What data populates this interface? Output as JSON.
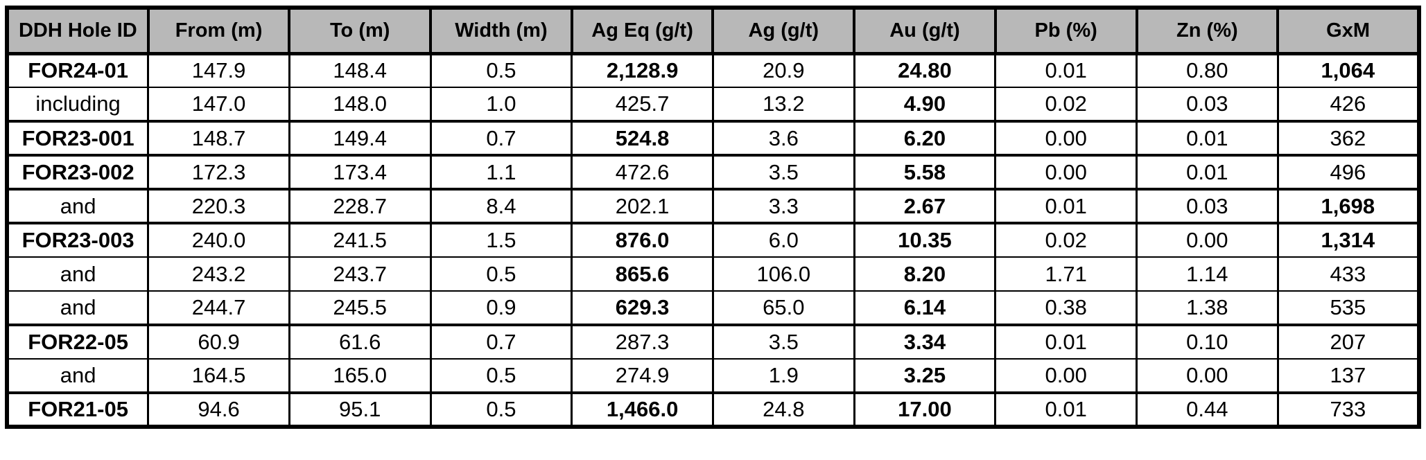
{
  "chart_data": {
    "type": "table",
    "columns": [
      "DDH Hole ID",
      "From (m)",
      "To (m)",
      "Width (m)",
      "Ag Eq (g/t)",
      "Ag (g/t)",
      "Au (g/t)",
      "Pb (%)",
      "Zn (%)",
      "GxM"
    ],
    "rows": [
      {
        "cells": [
          "FOR24-01",
          "147.9",
          "148.4",
          "0.5",
          "2,128.9",
          "20.9",
          "24.80",
          "0.01",
          "0.80",
          "1,064"
        ],
        "bold_cols": [
          0,
          4,
          6,
          9
        ],
        "thick_top": false
      },
      {
        "cells": [
          "including",
          "147.0",
          "148.0",
          "1.0",
          "425.7",
          "13.2",
          "4.90",
          "0.02",
          "0.03",
          "426"
        ],
        "bold_cols": [
          6
        ],
        "thick_top": false
      },
      {
        "cells": [
          "FOR23-001",
          "148.7",
          "149.4",
          "0.7",
          "524.8",
          "3.6",
          "6.20",
          "0.00",
          "0.01",
          "362"
        ],
        "bold_cols": [
          0,
          4,
          6
        ],
        "thick_top": true
      },
      {
        "cells": [
          "FOR23-002",
          "172.3",
          "173.4",
          "1.1",
          "472.6",
          "3.5",
          "5.58",
          "0.00",
          "0.01",
          "496"
        ],
        "bold_cols": [
          0,
          6
        ],
        "thick_top": true
      },
      {
        "cells": [
          "and",
          "220.3",
          "228.7",
          "8.4",
          "202.1",
          "3.3",
          "2.67",
          "0.01",
          "0.03",
          "1,698"
        ],
        "bold_cols": [
          6,
          9
        ],
        "thick_top": true
      },
      {
        "cells": [
          "FOR23-003",
          "240.0",
          "241.5",
          "1.5",
          "876.0",
          "6.0",
          "10.35",
          "0.02",
          "0.00",
          "1,314"
        ],
        "bold_cols": [
          0,
          4,
          6,
          9
        ],
        "thick_top": true
      },
      {
        "cells": [
          "and",
          "243.2",
          "243.7",
          "0.5",
          "865.6",
          "106.0",
          "8.20",
          "1.71",
          "1.14",
          "433"
        ],
        "bold_cols": [
          4,
          6
        ],
        "thick_top": false
      },
      {
        "cells": [
          "and",
          "244.7",
          "245.5",
          "0.9",
          "629.3",
          "65.0",
          "6.14",
          "0.38",
          "1.38",
          "535"
        ],
        "bold_cols": [
          4,
          6
        ],
        "thick_top": false
      },
      {
        "cells": [
          "FOR22-05",
          "60.9",
          "61.6",
          "0.7",
          "287.3",
          "3.5",
          "3.34",
          "0.01",
          "0.10",
          "207"
        ],
        "bold_cols": [
          0,
          6
        ],
        "thick_top": true
      },
      {
        "cells": [
          "and",
          "164.5",
          "165.0",
          "0.5",
          "274.9",
          "1.9",
          "3.25",
          "0.00",
          "0.00",
          "137"
        ],
        "bold_cols": [
          6
        ],
        "thick_top": false
      },
      {
        "cells": [
          "FOR21-05",
          "94.6",
          "95.1",
          "0.5",
          "1,466.0",
          "24.8",
          "17.00",
          "0.01",
          "0.44",
          "733"
        ],
        "bold_cols": [
          0,
          4,
          6
        ],
        "thick_top": true
      }
    ]
  },
  "colors": {
    "header_bg": "#b8b8b8",
    "border": "#000000",
    "text": "#000000",
    "cell_bg": "#ffffff"
  }
}
